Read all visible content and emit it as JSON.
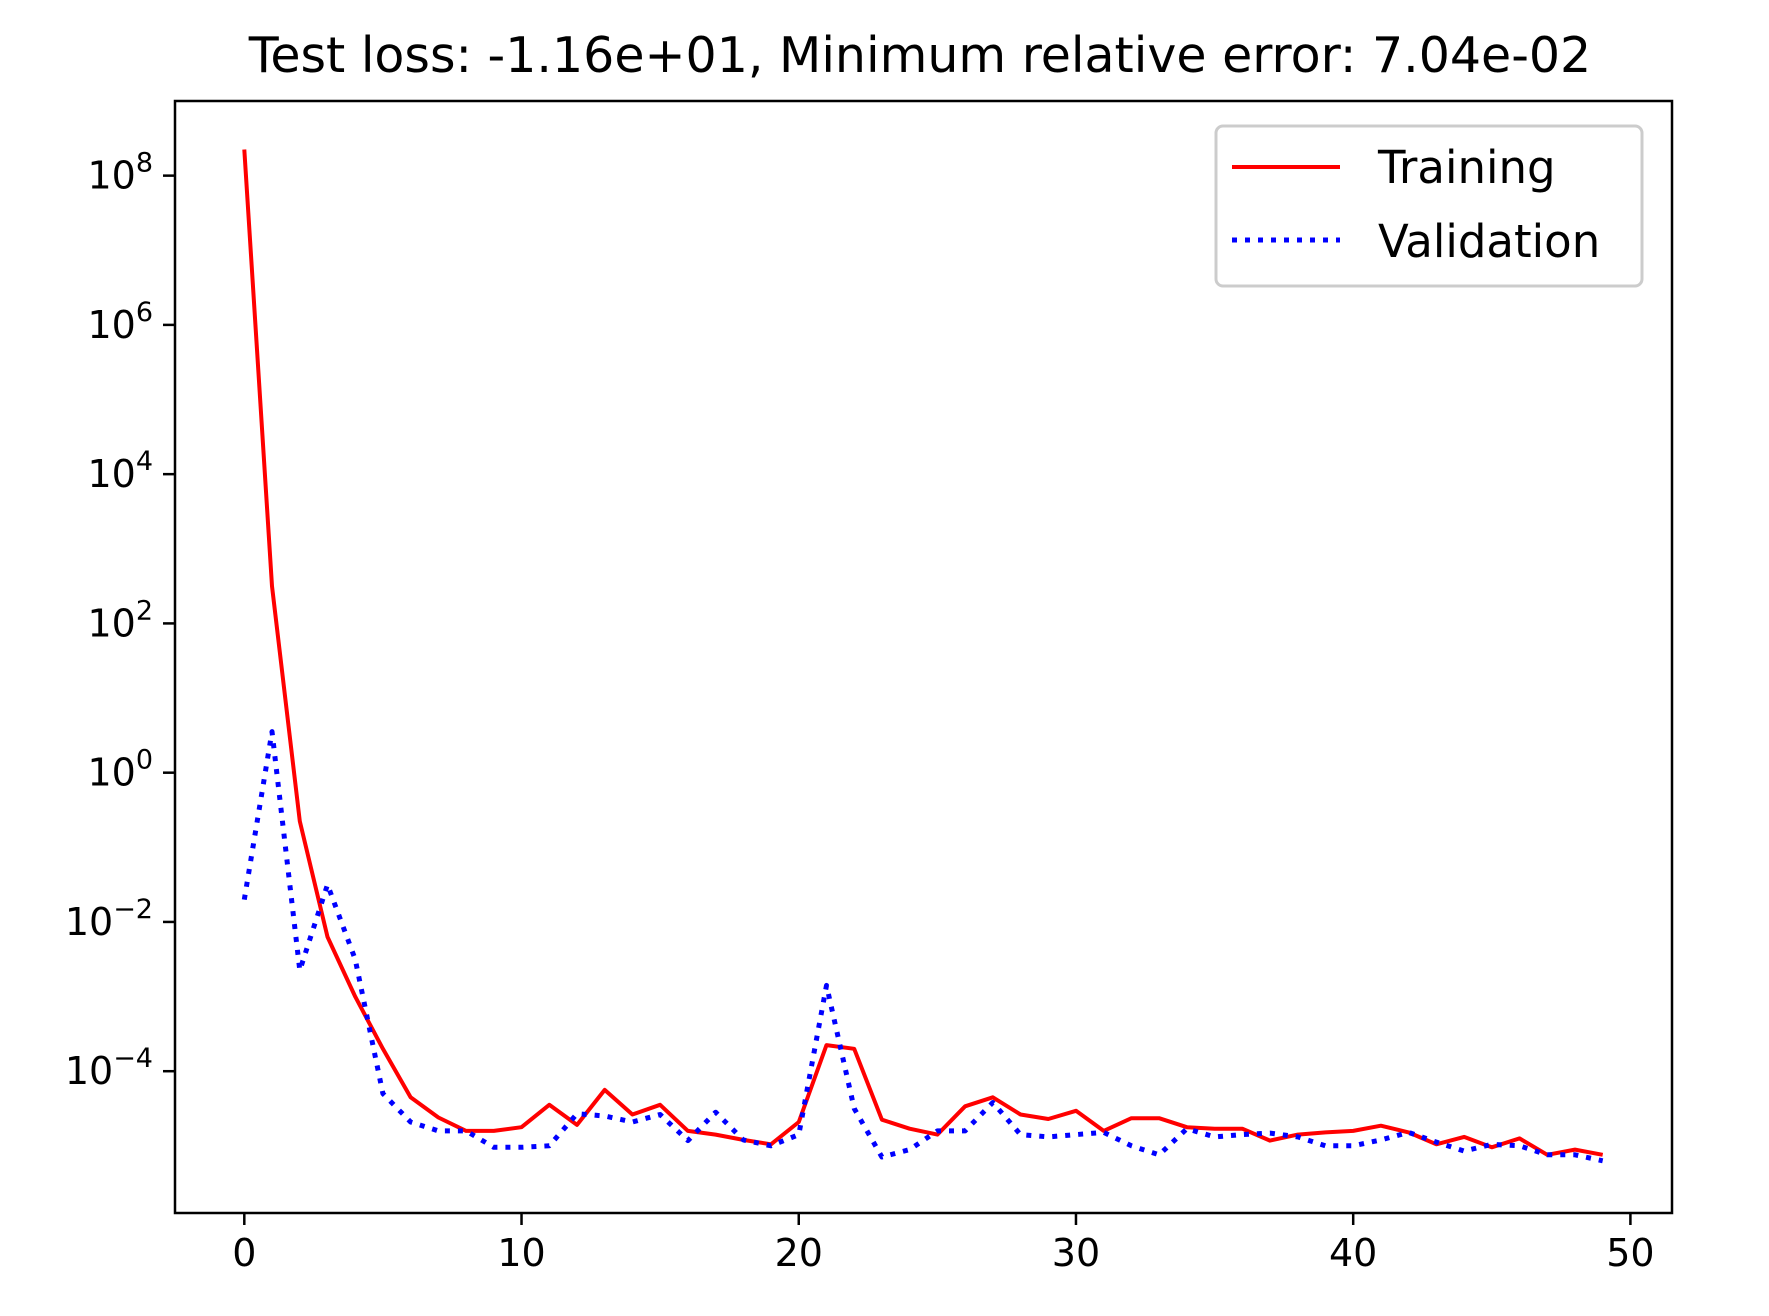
{
  "chart_data": {
    "type": "line",
    "title": "Test loss: -1.16e+01, Minimum relative error: 7.04e-02",
    "xlabel": "",
    "ylabel": "",
    "yscale": "log",
    "xlim": [
      -2.5,
      51.5
    ],
    "ylim_log10": [
      -5.9,
      9.0
    ],
    "xticks": [
      0,
      10,
      20,
      30,
      40,
      50
    ],
    "yticks_exp": [
      -4,
      -2,
      0,
      2,
      4,
      6,
      8
    ],
    "ytick_base": "10",
    "legend_position": "top-right",
    "grid": false,
    "x": [
      0,
      1,
      2,
      3,
      4,
      5,
      6,
      7,
      8,
      9,
      10,
      11,
      12,
      13,
      14,
      15,
      16,
      17,
      18,
      19,
      20,
      21,
      22,
      23,
      24,
      25,
      26,
      27,
      28,
      29,
      30,
      31,
      32,
      33,
      34,
      35,
      36,
      37,
      38,
      39,
      40,
      41,
      42,
      43,
      44,
      45,
      46,
      47,
      48,
      49
    ],
    "series": [
      {
        "name": "Training",
        "color": "#ff0000",
        "style": "solid",
        "log10_values": [
          8.35,
          2.5,
          -0.65,
          -2.2,
          -3.0,
          -3.7,
          -4.35,
          -4.62,
          -4.8,
          -4.8,
          -4.75,
          -4.45,
          -4.72,
          -4.25,
          -4.58,
          -4.45,
          -4.8,
          -4.85,
          -4.92,
          -4.98,
          -4.68,
          -3.65,
          -3.7,
          -4.65,
          -4.77,
          -4.85,
          -4.47,
          -4.35,
          -4.58,
          -4.64,
          -4.53,
          -4.8,
          -4.63,
          -4.63,
          -4.75,
          -4.77,
          -4.77,
          -4.93,
          -4.85,
          -4.82,
          -4.8,
          -4.73,
          -4.82,
          -4.98,
          -4.88,
          -5.02,
          -4.9,
          -5.12,
          -5.05,
          -5.12
        ]
      },
      {
        "name": "Validation",
        "color": "#0000ff",
        "style": "dotted",
        "log10_values": [
          -1.7,
          0.55,
          -2.65,
          -1.5,
          -2.5,
          -4.3,
          -4.68,
          -4.8,
          -4.8,
          -5.02,
          -5.02,
          -5.0,
          -4.57,
          -4.6,
          -4.68,
          -4.58,
          -4.93,
          -4.55,
          -4.92,
          -5.0,
          -4.85,
          -2.85,
          -4.5,
          -5.15,
          -5.05,
          -4.8,
          -4.8,
          -4.42,
          -4.85,
          -4.88,
          -4.85,
          -4.82,
          -5.0,
          -5.12,
          -4.77,
          -4.88,
          -4.85,
          -4.83,
          -4.88,
          -5.0,
          -5.0,
          -4.92,
          -4.82,
          -4.95,
          -5.07,
          -4.98,
          -5.0,
          -5.12,
          -5.12,
          -5.2
        ]
      }
    ]
  }
}
